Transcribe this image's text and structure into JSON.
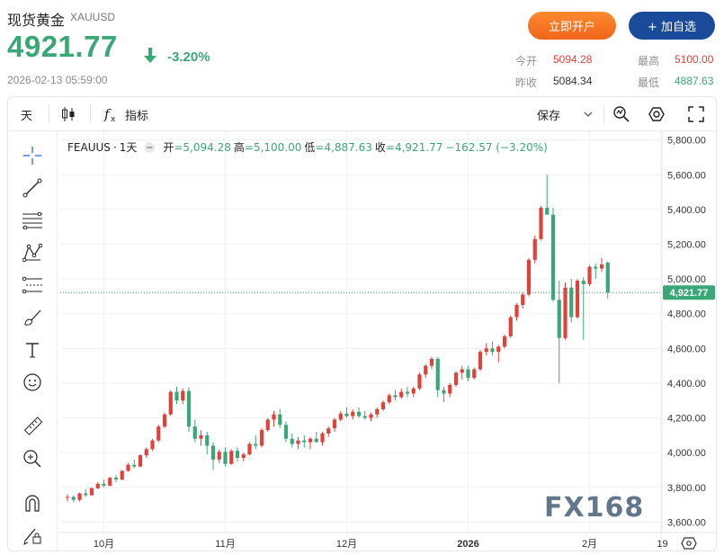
{
  "header": {
    "title": "现货黄金",
    "symbol": "XAUUSD",
    "price": "4921.77",
    "change_pct": "-3.20%",
    "timestamp": "2026-02-13 05:59:00",
    "open_account_label": "立即开户",
    "add_watchlist_label": "+ 加自选"
  },
  "stats": {
    "open_label": "今开",
    "open_value": "5094.28",
    "high_label": "最高",
    "high_value": "5100.00",
    "prev_close_label": "昨收",
    "prev_close_value": "5084.34",
    "low_label": "最低",
    "low_value": "4887.63"
  },
  "toolbar": {
    "interval_label": "天",
    "indicators_label": "指标",
    "save_label": "保存"
  },
  "legend": {
    "symbol": "FEAUUS",
    "interval": "1天",
    "open_label": "开",
    "open_value": "=5,094.28",
    "high_label": "高",
    "high_value": "=5,100.00",
    "low_label": "低",
    "low_value": "=4,887.63",
    "close_label": "收",
    "close_value": "=4,921.77",
    "change": "−162.57 (−3.20%)"
  },
  "watermark": "FX168",
  "colors": {
    "up": "#e0413a",
    "down": "#3aa776",
    "accent_orange": "#f0651a",
    "accent_blue": "#1a4a9a"
  },
  "icons": [
    "crosshair-icon",
    "trend-line-icon",
    "fib-icon",
    "pattern-icon",
    "projection-icon",
    "brush-icon",
    "text-icon",
    "emoji-icon",
    "ruler-icon",
    "zoom-in-icon",
    "magnet-icon",
    "lock-pencil-icon",
    "candles-icon",
    "fx-icon",
    "chevron-down-icon",
    "alert-icon",
    "settings-icon",
    "fullscreen-icon",
    "gear-icon"
  ],
  "chart_data": {
    "type": "candlestick",
    "xlabel": "",
    "ylabel": "",
    "x_ticks": [
      "10月",
      "11月",
      "12月",
      "2026",
      "2月",
      "19"
    ],
    "y_ticks": [
      "5,800.00",
      "5,600.00",
      "5,400.00",
      "5,200.00",
      "5,000.00",
      "4,800.00",
      "4,600.00",
      "4,400.00",
      "4,200.00",
      "4,000.00",
      "3,800.00",
      "3,600.00"
    ],
    "ylim": [
      3540,
      5850
    ],
    "last_price_label": "4,921.77",
    "last_price": 4921.77,
    "candles": [
      [
        3740,
        3760,
        3720,
        3745
      ],
      [
        3745,
        3752,
        3715,
        3728
      ],
      [
        3728,
        3770,
        3720,
        3765
      ],
      [
        3765,
        3790,
        3745,
        3755
      ],
      [
        3755,
        3800,
        3750,
        3795
      ],
      [
        3795,
        3830,
        3790,
        3820
      ],
      [
        3820,
        3845,
        3800,
        3810
      ],
      [
        3810,
        3860,
        3805,
        3855
      ],
      [
        3855,
        3870,
        3830,
        3845
      ],
      [
        3845,
        3900,
        3840,
        3895
      ],
      [
        3895,
        3940,
        3890,
        3930
      ],
      [
        3930,
        3960,
        3910,
        3920
      ],
      [
        3920,
        3990,
        3915,
        3985
      ],
      [
        3985,
        4030,
        3970,
        4020
      ],
      [
        4020,
        4080,
        4010,
        4070
      ],
      [
        4070,
        4160,
        4060,
        4150
      ],
      [
        4150,
        4230,
        4140,
        4220
      ],
      [
        4220,
        4360,
        4210,
        4350
      ],
      [
        4350,
        4380,
        4280,
        4300
      ],
      [
        4300,
        4370,
        4280,
        4355
      ],
      [
        4355,
        4375,
        4120,
        4150
      ],
      [
        4150,
        4190,
        4060,
        4080
      ],
      [
        4080,
        4130,
        4040,
        4100
      ],
      [
        4100,
        4120,
        3990,
        4040
      ],
      [
        4040,
        4060,
        3900,
        3960
      ],
      [
        3960,
        4020,
        3940,
        4005
      ],
      [
        4005,
        4030,
        3920,
        3935
      ],
      [
        3935,
        4020,
        3930,
        4010
      ],
      [
        4010,
        4030,
        3950,
        3970
      ],
      [
        3970,
        4000,
        3950,
        3990
      ],
      [
        3990,
        4060,
        3985,
        4050
      ],
      [
        4050,
        4100,
        4020,
        4040
      ],
      [
        4040,
        4140,
        4030,
        4130
      ],
      [
        4130,
        4200,
        4120,
        4190
      ],
      [
        4190,
        4240,
        4150,
        4220
      ],
      [
        4220,
        4250,
        4140,
        4160
      ],
      [
        4160,
        4180,
        4060,
        4080
      ],
      [
        4080,
        4110,
        4030,
        4050
      ],
      [
        4050,
        4090,
        4020,
        4070
      ],
      [
        4070,
        4100,
        4030,
        4060
      ],
      [
        4060,
        4090,
        4020,
        4080
      ],
      [
        4080,
        4120,
        4060,
        4060
      ],
      [
        4060,
        4120,
        4040,
        4110
      ],
      [
        4110,
        4150,
        4090,
        4140
      ],
      [
        4140,
        4200,
        4120,
        4190
      ],
      [
        4190,
        4240,
        4180,
        4225
      ],
      [
        4225,
        4260,
        4200,
        4210
      ],
      [
        4210,
        4250,
        4190,
        4235
      ],
      [
        4235,
        4260,
        4200,
        4210
      ],
      [
        4210,
        4240,
        4190,
        4200
      ],
      [
        4200,
        4230,
        4180,
        4220
      ],
      [
        4220,
        4260,
        4200,
        4250
      ],
      [
        4250,
        4300,
        4240,
        4290
      ],
      [
        4290,
        4340,
        4280,
        4330
      ],
      [
        4330,
        4360,
        4300,
        4320
      ],
      [
        4320,
        4370,
        4310,
        4350
      ],
      [
        4350,
        4380,
        4320,
        4340
      ],
      [
        4340,
        4380,
        4320,
        4370
      ],
      [
        4370,
        4460,
        4360,
        4450
      ],
      [
        4450,
        4510,
        4430,
        4500
      ],
      [
        4500,
        4550,
        4480,
        4540
      ],
      [
        4540,
        4550,
        4320,
        4360
      ],
      [
        4360,
        4380,
        4290,
        4340
      ],
      [
        4340,
        4400,
        4320,
        4390
      ],
      [
        4390,
        4470,
        4380,
        4460
      ],
      [
        4460,
        4500,
        4420,
        4480
      ],
      [
        4480,
        4500,
        4410,
        4430
      ],
      [
        4430,
        4490,
        4420,
        4480
      ],
      [
        4480,
        4590,
        4470,
        4580
      ],
      [
        4580,
        4630,
        4560,
        4600
      ],
      [
        4600,
        4640,
        4560,
        4580
      ],
      [
        4580,
        4620,
        4520,
        4610
      ],
      [
        4610,
        4680,
        4600,
        4670
      ],
      [
        4670,
        4790,
        4660,
        4780
      ],
      [
        4780,
        4860,
        4760,
        4850
      ],
      [
        4850,
        4920,
        4830,
        4910
      ],
      [
        4910,
        5120,
        4900,
        5110
      ],
      [
        5110,
        5250,
        5090,
        5230
      ],
      [
        5230,
        5420,
        5220,
        5410
      ],
      [
        5410,
        5600,
        5380,
        5370
      ],
      [
        5370,
        5410,
        4870,
        4880
      ],
      [
        4880,
        4990,
        4400,
        4660
      ],
      [
        4660,
        4980,
        4650,
        4950
      ],
      [
        4950,
        5000,
        4750,
        4780
      ],
      [
        4780,
        5000,
        4770,
        4990
      ],
      [
        4990,
        5010,
        4650,
        4970
      ],
      [
        4970,
        5080,
        4960,
        5070
      ],
      [
        5070,
        5090,
        5000,
        5060
      ],
      [
        5060,
        5120,
        5040,
        5084
      ],
      [
        5094,
        5100,
        4888,
        4922
      ]
    ]
  }
}
